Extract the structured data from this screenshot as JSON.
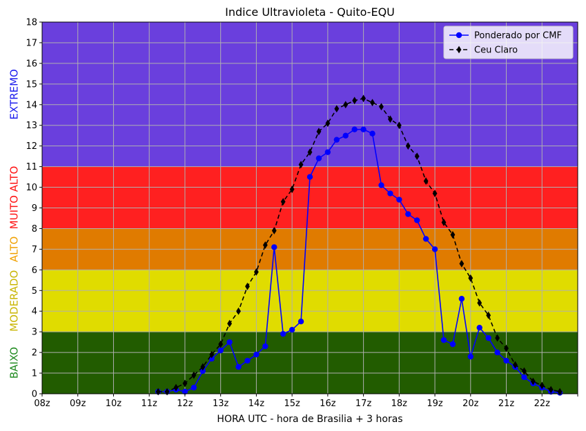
{
  "chart_data": {
    "type": "line",
    "title": "Indice Ultravioleta - Quito-EQU",
    "xlabel": "HORA UTC - hora de Brasilia + 3 horas",
    "ylabel": "",
    "xlim": [
      8,
      23
    ],
    "ylim": [
      0,
      18
    ],
    "x_tick_values": [
      8,
      9,
      10,
      11,
      12,
      13,
      14,
      15,
      16,
      17,
      18,
      19,
      20,
      21,
      22,
      23
    ],
    "x_tick_labels": [
      "08z",
      "09z",
      "10z",
      "11z",
      "12z",
      "13z",
      "14z",
      "15z",
      "16z",
      "17z",
      "18z",
      "19z",
      "20z",
      "21z",
      "22z",
      ""
    ],
    "y_ticks": [
      0,
      1,
      2,
      3,
      4,
      5,
      6,
      7,
      8,
      9,
      10,
      11,
      12,
      13,
      14,
      15,
      16,
      17,
      18
    ],
    "grid": true,
    "legend_position": "top-right",
    "bands": [
      {
        "label": "BAIXO",
        "from": 0,
        "to": 3,
        "fill": "#225c00",
        "label_color": "#1f8a1f"
      },
      {
        "label": "MODERADO",
        "from": 3,
        "to": 6,
        "fill": "#e0dc00",
        "label_color": "#c8b400"
      },
      {
        "label": "ALTO",
        "from": 6,
        "to": 8,
        "fill": "#e07b00",
        "label_color": "#f0a000"
      },
      {
        "label": "MUITO ALTO",
        "from": 8,
        "to": 11,
        "fill": "#ff2020",
        "label_color": "#ff1010"
      },
      {
        "label": "EXTREMO",
        "from": 11,
        "to": 18,
        "fill": "#6a3fdd",
        "label_color": "#1a1aee"
      }
    ],
    "series": [
      {
        "name": "Ponderado por CMF",
        "color": "#0000ff",
        "marker": "circle",
        "linestyle": "solid",
        "x": [
          11.25,
          11.5,
          11.75,
          12.0,
          12.25,
          12.5,
          12.75,
          13.0,
          13.25,
          13.5,
          13.75,
          14.0,
          14.25,
          14.5,
          14.75,
          15.0,
          15.25,
          15.5,
          15.75,
          16.0,
          16.25,
          16.5,
          16.75,
          17.0,
          17.25,
          17.5,
          17.75,
          18.0,
          18.25,
          18.5,
          18.75,
          19.0,
          19.25,
          19.5,
          19.75,
          20.0,
          20.25,
          20.5,
          20.75,
          21.0,
          21.25,
          21.5,
          21.75,
          22.0,
          22.25,
          22.5
        ],
        "y": [
          0.1,
          0.1,
          0.2,
          0.1,
          0.3,
          1.1,
          1.7,
          2.1,
          2.5,
          1.3,
          1.6,
          1.9,
          2.3,
          7.1,
          2.9,
          3.1,
          3.5,
          10.5,
          11.4,
          11.7,
          12.3,
          12.5,
          12.8,
          12.8,
          12.6,
          10.1,
          9.7,
          9.4,
          8.7,
          8.4,
          7.5,
          7.0,
          2.6,
          2.4,
          4.6,
          1.8,
          3.2,
          2.7,
          2.0,
          1.6,
          1.3,
          0.8,
          0.5,
          0.3,
          0.1,
          0.05
        ]
      },
      {
        "name": "Ceu Claro",
        "color": "#000000",
        "marker": "diamond",
        "linestyle": "dashed",
        "x": [
          11.25,
          11.5,
          11.75,
          12.0,
          12.25,
          12.5,
          12.75,
          13.0,
          13.25,
          13.5,
          13.75,
          14.0,
          14.25,
          14.5,
          14.75,
          15.0,
          15.25,
          15.5,
          15.75,
          16.0,
          16.25,
          16.5,
          16.75,
          17.0,
          17.25,
          17.5,
          17.75,
          18.0,
          18.25,
          18.5,
          18.75,
          19.0,
          19.25,
          19.5,
          19.75,
          20.0,
          20.25,
          20.5,
          20.75,
          21.0,
          21.25,
          21.5,
          21.75,
          22.0,
          22.25,
          22.5
        ],
        "y": [
          0.1,
          0.1,
          0.3,
          0.5,
          0.9,
          1.3,
          1.9,
          2.4,
          3.4,
          4.0,
          5.2,
          5.9,
          7.2,
          7.9,
          9.3,
          9.9,
          11.1,
          11.7,
          12.7,
          13.1,
          13.8,
          14.0,
          14.2,
          14.3,
          14.1,
          13.9,
          13.3,
          13.0,
          12.0,
          11.5,
          10.3,
          9.7,
          8.3,
          7.7,
          6.3,
          5.6,
          4.4,
          3.8,
          2.7,
          2.2,
          1.4,
          1.1,
          0.6,
          0.4,
          0.2,
          0.1
        ]
      }
    ]
  }
}
